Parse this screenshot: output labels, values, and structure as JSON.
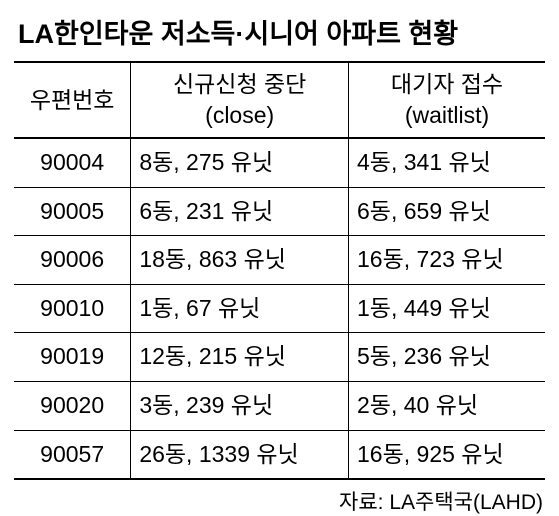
{
  "title": "LA한인타운 저소득·시니어 아파트 현황",
  "title_fontsize": 27,
  "columns": [
    {
      "line1": "우편번호",
      "line2": ""
    },
    {
      "line1": "신규신청 중단",
      "line2": "(close)"
    },
    {
      "line1": "대기자 접수",
      "line2": "(waitlist)"
    }
  ],
  "header_fontsize": 23,
  "rows": [
    {
      "zip": "90004",
      "close": "8동, 275 유닛",
      "waitlist": "4동, 341 유닛"
    },
    {
      "zip": "90005",
      "close": "6동, 231 유닛",
      "waitlist": "6동, 659 유닛"
    },
    {
      "zip": "90006",
      "close": "18동, 863 유닛",
      "waitlist": "16동, 723 유닛"
    },
    {
      "zip": "90010",
      "close": "1동, 67 유닛",
      "waitlist": "1동, 449 유닛"
    },
    {
      "zip": "90019",
      "close": "12동, 215 유닛",
      "waitlist": "5동, 236 유닛"
    },
    {
      "zip": "90020",
      "close": "3동, 239 유닛",
      "waitlist": "2동, 40 유닛"
    },
    {
      "zip": "90057",
      "close": "26동, 1339 유닛",
      "waitlist": "16동, 925 유닛"
    }
  ],
  "cell_fontsize": 23,
  "source": "자료: LA주택국(LAHD)",
  "source_fontsize": 21,
  "colors": {
    "text": "#000000",
    "background": "#ffffff",
    "border": "#000000"
  }
}
